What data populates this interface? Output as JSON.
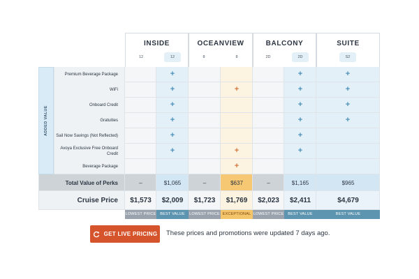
{
  "categories": [
    {
      "name": "INSIDE",
      "codes": [
        "12",
        "12"
      ]
    },
    {
      "name": "OCEANVIEW",
      "codes": [
        "8",
        "8"
      ]
    },
    {
      "name": "BALCONY",
      "codes": [
        "2D",
        "2D"
      ]
    },
    {
      "name": "SUITE",
      "codes": [
        "S2"
      ]
    }
  ],
  "added_value_label": "ADDED VALUE",
  "perks": [
    "Premium Beverage Package",
    "WiFi",
    "Onboard Credit",
    "Gratuities",
    "Sail Now Savings (Not Reflected)",
    "Avoya Exclusive Free Onboard Credit",
    "Beverage Package"
  ],
  "plus_symbol": "+",
  "total_label": "Total Value of Perks",
  "total_values": [
    "–",
    "$1,065",
    "–",
    "$637",
    "–",
    "$1,165",
    "$965"
  ],
  "price_label": "Cruise Price",
  "prices": [
    "$1,573",
    "$2,009",
    "$1,723",
    "$1,769",
    "$2,023",
    "$2,411",
    "$4,679"
  ],
  "badges": [
    "LOWEST PRICE",
    "BEST VALUE",
    "LOWEST PRICE",
    "EXCEPTIONAL",
    "LOWEST PRICE",
    "BEST VALUE",
    "BEST VALUE"
  ],
  "cta": {
    "label": "GET LIVE PRICING",
    "icon": "refresh-icon"
  },
  "updated_text": "These prices and promotions were updated 7 days ago.",
  "colors": {
    "highlight_blue": "#e4f0f8",
    "highlight_orange": "#fdf3e1",
    "total_orange": "#f6c873",
    "total_blue": "#d3e6f3",
    "total_gray": "#ced3d8",
    "badge_gray": "#9aa3ad",
    "badge_teal": "#5d95b0",
    "badge_orange": "#f4c56b",
    "button": "#d6542b",
    "plus_blue": "#4a8fb8",
    "plus_orange": "#d2793f"
  }
}
